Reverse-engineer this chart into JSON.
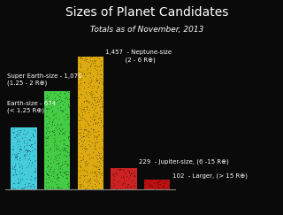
{
  "title": "Sizes of Planet Candidates",
  "subtitle": "Totals as of November, 2013",
  "categories": [
    "Earth-size",
    "Super Earth-size",
    "Neptune-size",
    "Jupiter-size",
    "Larger"
  ],
  "values": [
    674,
    1076,
    1457,
    229,
    102
  ],
  "bar_colors": [
    "#44ccdd",
    "#44cc44",
    "#ddaa11",
    "#cc2222",
    "#bb1111"
  ],
  "background_color": "#0a0a0a",
  "text_color": "#ffffff",
  "ylim": [
    0,
    1650
  ],
  "figsize": [
    3.2,
    2.43
  ],
  "dpi": 100,
  "title_fontsize": 10,
  "subtitle_fontsize": 6.5,
  "label_fontsize": 5.0
}
